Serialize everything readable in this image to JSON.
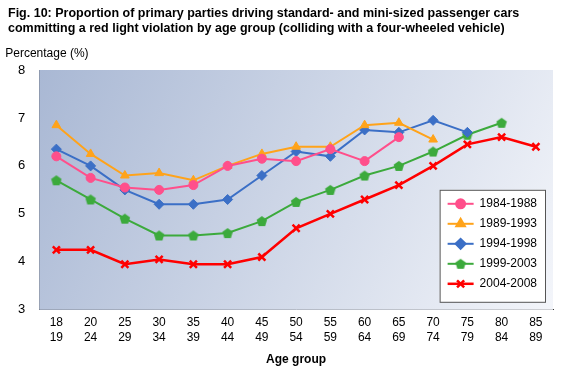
{
  "chart_data": {
    "type": "line",
    "title": [
      "Fig. 10: Proportion of primary parties driving standard- and mini-sized passenger cars",
      "committing a red light violation by age group (colliding with a four-wheeled vehicle)"
    ],
    "xlabel": "Age group",
    "ylabel": "Percentage (%)",
    "categories": [
      [
        "18",
        "19"
      ],
      [
        "20",
        "24"
      ],
      [
        "25",
        "29"
      ],
      [
        "30",
        "34"
      ],
      [
        "35",
        "39"
      ],
      [
        "40",
        "44"
      ],
      [
        "45",
        "49"
      ],
      [
        "50",
        "54"
      ],
      [
        "55",
        "59"
      ],
      [
        "60",
        "64"
      ],
      [
        "65",
        "69"
      ],
      [
        "70",
        "74"
      ],
      [
        "75",
        "79"
      ],
      [
        "80",
        "84"
      ],
      [
        "85",
        "89"
      ]
    ],
    "series": [
      {
        "name": "1984-1988",
        "color": "#ff4f8b",
        "marker": "circle",
        "values": [
          6.2,
          5.75,
          5.55,
          5.5,
          5.6,
          6.0,
          6.15,
          6.1,
          6.35,
          6.1,
          6.6,
          null,
          null,
          null,
          null
        ]
      },
      {
        "name": "1989-1993",
        "color": "#ffa31a",
        "marker": "triangle",
        "values": [
          6.85,
          6.25,
          5.8,
          5.85,
          5.7,
          6.0,
          6.25,
          6.4,
          6.4,
          6.85,
          6.9,
          6.55,
          null,
          null,
          null
        ]
      },
      {
        "name": "1994-1998",
        "color": "#3b6fc6",
        "marker": "diamond",
        "values": [
          6.35,
          6.0,
          5.5,
          5.2,
          5.2,
          5.3,
          5.8,
          6.3,
          6.2,
          6.75,
          6.7,
          6.95,
          6.7,
          null,
          null
        ]
      },
      {
        "name": "1999-2003",
        "color": "#3caa3c",
        "marker": "pentagon",
        "values": [
          5.7,
          5.3,
          4.9,
          4.55,
          4.55,
          4.6,
          4.85,
          5.25,
          5.5,
          5.8,
          6.0,
          6.3,
          6.65,
          6.9,
          null
        ]
      },
      {
        "name": "2004-2008",
        "color": "#ff0000",
        "marker": "x",
        "values": [
          4.25,
          4.25,
          3.95,
          4.05,
          3.95,
          3.95,
          4.1,
          4.7,
          5.0,
          5.3,
          5.6,
          6.0,
          6.45,
          6.6,
          6.4
        ]
      }
    ],
    "ylim": [
      3,
      8
    ],
    "yticks": [
      3,
      4,
      5,
      6,
      7,
      8
    ],
    "grid": false,
    "legend": "lower right"
  }
}
